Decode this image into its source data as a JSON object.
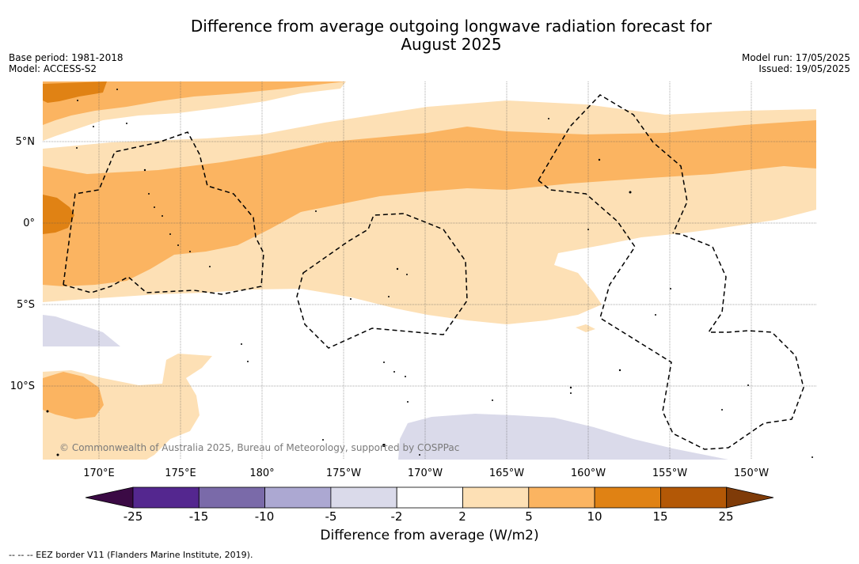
{
  "title_line1": "Difference from average outgoing longwave radiation forecast for",
  "title_line2": "August 2025",
  "meta_left": {
    "base_period": "Base period: 1981-2018",
    "model": "Model: ACCESS-S2"
  },
  "meta_right": {
    "model_run": "Model run: 17/05/2025",
    "issued": "Issued: 19/05/2025"
  },
  "lat_labels": [
    "5°N",
    "0°",
    "5°S",
    "10°S"
  ],
  "lon_labels": [
    "170°E",
    "175°E",
    "180°",
    "175°W",
    "170°W",
    "165°W",
    "160°W",
    "155°W",
    "150°W"
  ],
  "copyright": "© Commonwealth of Australia 2025, Bureau of Meteorology, supported by COSPPac",
  "colorbar": {
    "title": "Difference from average (W/m2)",
    "ticks": [
      "-25",
      "-15",
      "-10",
      "-5",
      "-2",
      "2",
      "5",
      "10",
      "15",
      "25"
    ],
    "colors": {
      "below_-25": "#3b0a45",
      "-25_-15": "#54278f",
      "-15_-10": "#7a6aa9",
      "-10_-5": "#aca8d2",
      "-5_-2": "#dadaea",
      "-2_2": "#ffffff",
      "2_5": "#fde0b5",
      "5_10": "#fbb461",
      "10_15": "#e08214",
      "15_25": "#b35806",
      "above_25": "#7f3b08"
    }
  },
  "footer_note": "--  --  -- EEZ border V11 (Flanders Marine Institute, 2019)."
}
